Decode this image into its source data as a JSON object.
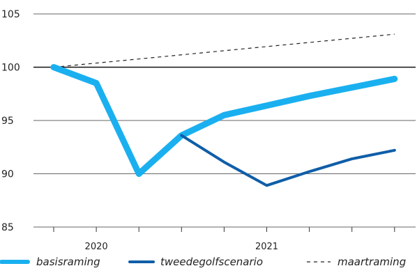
{
  "chart_data": {
    "type": "line",
    "title": "",
    "xlabel": "",
    "ylabel": "",
    "ylim": [
      85,
      105
    ],
    "yticks": [
      85,
      90,
      95,
      100,
      105
    ],
    "reference_line": 100,
    "grid": "horizontal",
    "year_labels": [
      "2020",
      "2021"
    ],
    "legend_position": "bottom",
    "colors": {
      "basisraming": "#1ab0f0",
      "tweedegolfscenario": "#0f5ea8",
      "maartraming": "#222222"
    },
    "series": [
      {
        "name": "basisraming",
        "x": [
          0,
          1,
          2,
          3,
          4,
          5,
          6,
          7,
          8
        ],
        "values": [
          100.0,
          98.5,
          90.0,
          93.6,
          95.5,
          96.4,
          97.3,
          98.1,
          98.9
        ]
      },
      {
        "name": "tweedegolfscenario",
        "x": [
          3,
          4,
          5,
          6,
          7,
          8
        ],
        "values": [
          93.6,
          91.1,
          88.9,
          90.2,
          91.4,
          92.2
        ]
      },
      {
        "name": "maartraming",
        "x": [
          0,
          8
        ],
        "values": [
          100.0,
          103.1
        ]
      }
    ]
  }
}
